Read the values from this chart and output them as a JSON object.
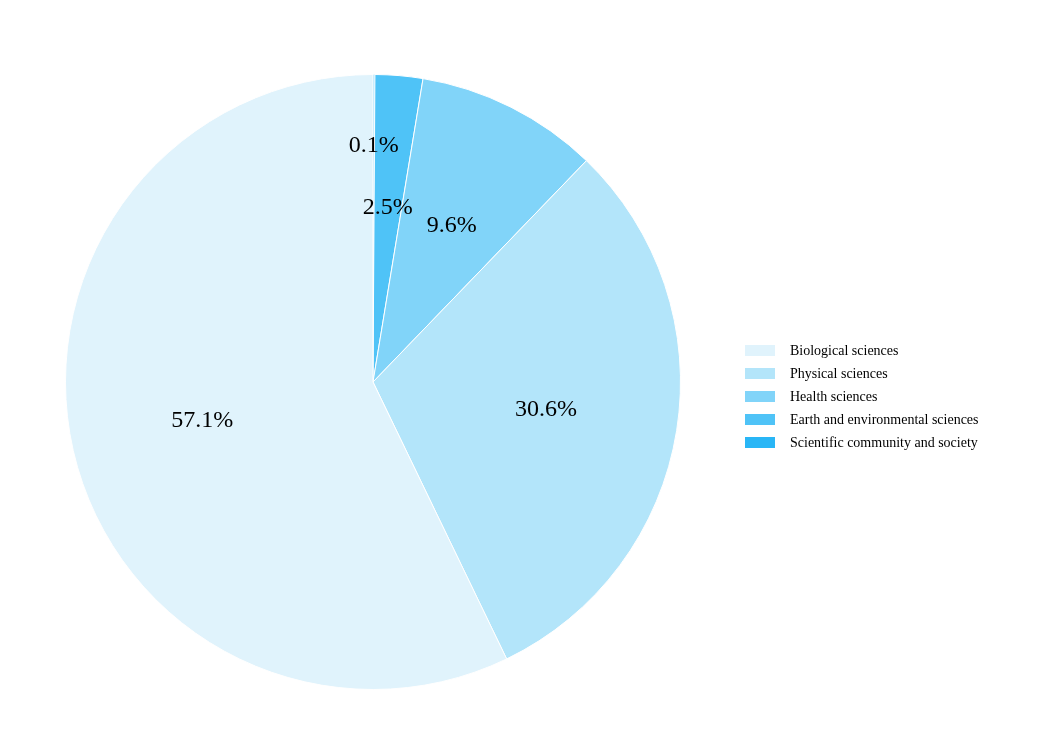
{
  "chart_data": {
    "type": "pie",
    "categories": [
      "Biological sciences",
      "Physical sciences",
      "Health sciences",
      "Earth and environmental sciences",
      "Scientific community and society"
    ],
    "values": [
      57.1,
      30.6,
      9.6,
      2.5,
      0.1
    ],
    "colors": [
      "#e0f3fc",
      "#b3e5fa",
      "#81d4f9",
      "#4fc3f7",
      "#29b6f6"
    ],
    "value_labels": [
      "57.1%",
      "30.6%",
      "9.6%",
      "2.5%",
      "0.1%"
    ],
    "legend": "right"
  }
}
